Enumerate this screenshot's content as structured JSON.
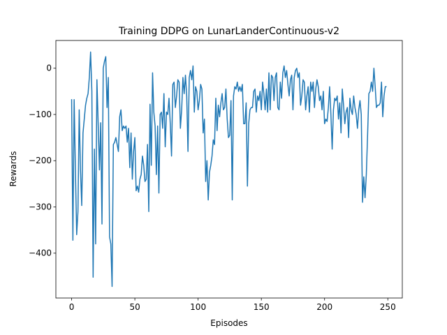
{
  "chart_data": {
    "type": "line",
    "title": "Training DDPG on LunarLanderContinuous-v2",
    "xlabel": "Episodes",
    "ylabel": "Rewards",
    "series": [
      {
        "color": "#1f77b4",
        "values": [
          -67,
          -372,
          -68,
          -220,
          -360,
          -310,
          -90,
          -220,
          -297,
          -140,
          -110,
          -80,
          -65,
          -55,
          -20,
          35,
          -50,
          -452,
          -175,
          -380,
          -25,
          -120,
          -220,
          -118,
          -337,
          0,
          15,
          25,
          -85,
          -20,
          -365,
          -380,
          -472,
          -165,
          -160,
          -150,
          -165,
          -180,
          -105,
          -90,
          -135,
          -125,
          -130,
          -125,
          -160,
          -130,
          -215,
          -140,
          -240,
          -180,
          -150,
          -265,
          -255,
          -268,
          -240,
          -230,
          -190,
          -210,
          -245,
          -240,
          -165,
          -310,
          -78,
          -210,
          -10,
          -95,
          -125,
          -230,
          -125,
          -270,
          -100,
          -95,
          -130,
          -55,
          -170,
          -95,
          -100,
          -65,
          -120,
          -190,
          -35,
          -30,
          -85,
          -60,
          -25,
          -30,
          -130,
          -90,
          -20,
          -55,
          -15,
          -60,
          -180,
          -20,
          -5,
          -25,
          5,
          -95,
          -40,
          -50,
          -90,
          -70,
          -35,
          -45,
          -140,
          -110,
          -245,
          -200,
          -285,
          -225,
          -210,
          -190,
          -155,
          -165,
          -65,
          -135,
          -80,
          -105,
          -75,
          -55,
          -90,
          -85,
          -45,
          -110,
          -150,
          -145,
          -70,
          -285,
          -60,
          -40,
          -45,
          -30,
          -50,
          -40,
          -50,
          -35,
          -120,
          -120,
          -75,
          -255,
          -120,
          -90,
          -85,
          -85,
          -50,
          -45,
          -95,
          -60,
          -70,
          -50,
          -90,
          -30,
          -55,
          -90,
          -45,
          -95,
          -10,
          -90,
          -15,
          -20,
          -70,
          -20,
          -10,
          -85,
          -90,
          -30,
          -65,
          -10,
          5,
          -20,
          -5,
          -35,
          -60,
          -25,
          -15,
          -90,
          -20,
          -5,
          0,
          -20,
          -10,
          -80,
          -60,
          -25,
          -30,
          -90,
          -60,
          -40,
          -95,
          -30,
          -50,
          -30,
          -85,
          -45,
          -25,
          -40,
          -70,
          -60,
          -90,
          -50,
          -120,
          -110,
          -115,
          -85,
          -40,
          -100,
          -175,
          -90,
          -65,
          -70,
          -60,
          -110,
          -75,
          -140,
          -45,
          -80,
          -120,
          -95,
          -85,
          -150,
          -65,
          -90,
          -100,
          -60,
          -85,
          -100,
          -130,
          -90,
          -70,
          -100,
          -290,
          -235,
          -280,
          -230,
          -145,
          -55,
          -50,
          -30,
          -50,
          0,
          -40,
          -85,
          -80,
          -80,
          -75,
          -30,
          -105,
          -60,
          -40,
          -40
        ]
      }
    ],
    "xlim": [
      -12.45,
      261.45
    ],
    "xticks": [
      0,
      50,
      100,
      150,
      200,
      250
    ],
    "ylim": [
      -497,
      60
    ],
    "yticks": [
      {
        "value": -400,
        "label": "−400"
      },
      {
        "value": -300,
        "label": "−300"
      },
      {
        "value": -200,
        "label": "−200"
      },
      {
        "value": -100,
        "label": "−100"
      },
      0
    ]
  }
}
